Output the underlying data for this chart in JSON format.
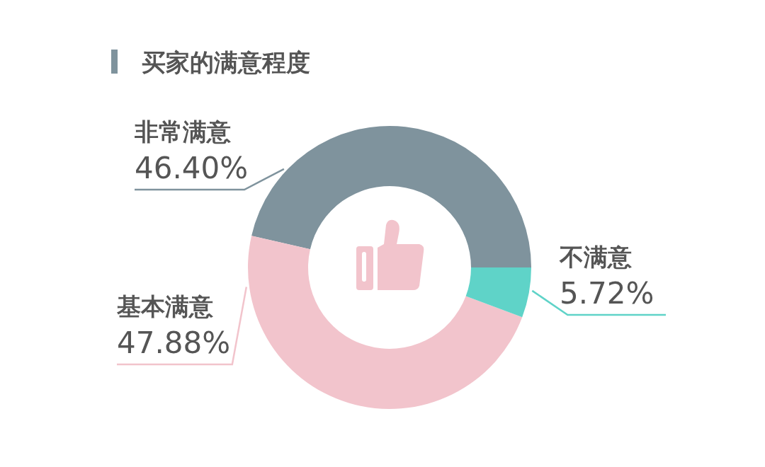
{
  "chart_data": {
    "type": "donut",
    "title": "买家的满意程度",
    "categories": [
      "非常满意",
      "基本满意",
      "不满意"
    ],
    "values": [
      46.4,
      47.88,
      5.72
    ],
    "value_labels": [
      "46.40%",
      "47.88%",
      "5.72%"
    ],
    "colors": [
      "#7f939d",
      "#f2c4cc",
      "#5fd3c8"
    ]
  }
}
